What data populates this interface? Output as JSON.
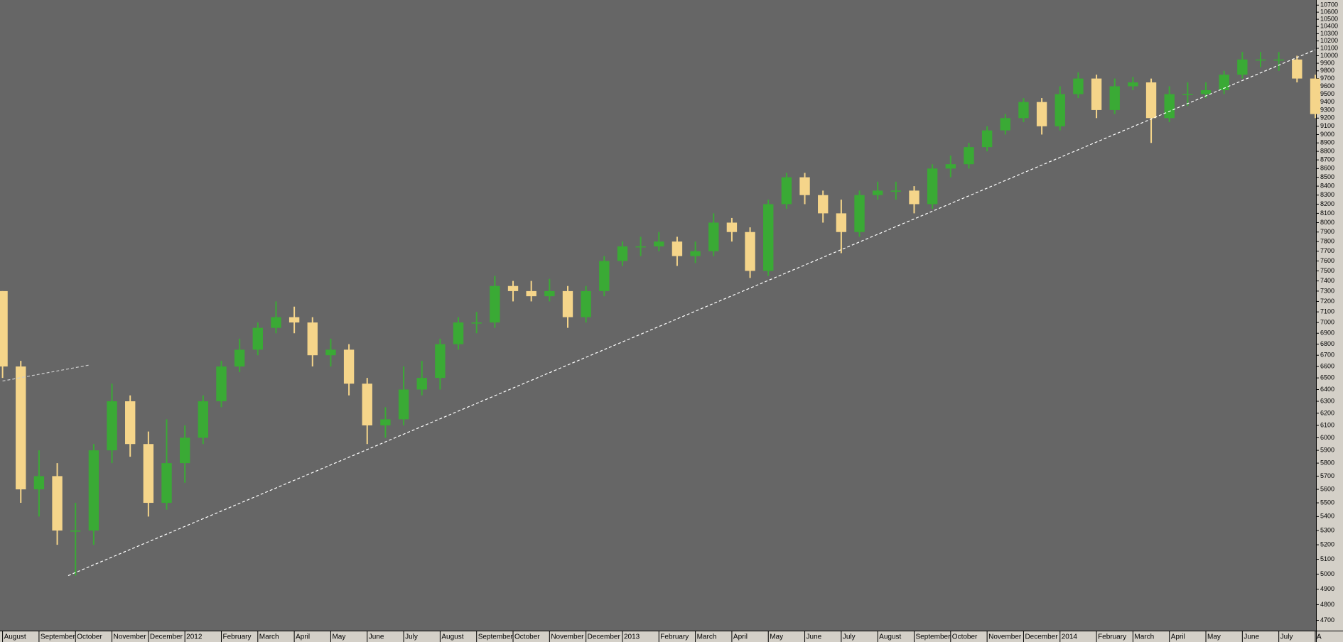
{
  "chart_data": {
    "type": "candlestick",
    "log_scale": true,
    "background": "#666666",
    "up_color": "#3aaa35",
    "down_color": "#f5d58a",
    "x": [
      0,
      0.5,
      1,
      1.5,
      2,
      2.5,
      3,
      3.5,
      4,
      4.5,
      5,
      5.5,
      6,
      6.5,
      7,
      7.5,
      8,
      8.5,
      9,
      9.5,
      10,
      10.5,
      11,
      11.5,
      12,
      12.5,
      13,
      13.5,
      14,
      14.5,
      15,
      15.5,
      16,
      16.5,
      17,
      17.5,
      18,
      18.5,
      19,
      19.5,
      20,
      20.5,
      21,
      21.5,
      22,
      22.5,
      23,
      23.5,
      24,
      24.5,
      25,
      25.5,
      26,
      26.5,
      27,
      27.5,
      28,
      28.5,
      29,
      29.5,
      30,
      30.5,
      31,
      31.5,
      32,
      32.5,
      33,
      33.5,
      34,
      34.5,
      35,
      35.5,
      36
    ],
    "open": [
      7300,
      6600,
      5600,
      5700,
      5300,
      5300,
      5900,
      6300,
      5950,
      5500,
      5800,
      6000,
      6300,
      6600,
      6750,
      6950,
      7050,
      7000,
      6700,
      6750,
      6450,
      6100,
      6150,
      6400,
      6500,
      6800,
      7000,
      7000,
      7350,
      7300,
      7250,
      7300,
      7050,
      7300,
      7600,
      7750,
      7750,
      7800,
      7650,
      7700,
      8000,
      7900,
      7500,
      8200,
      8500,
      8300,
      8100,
      7900,
      8300,
      8350,
      8350,
      8200,
      8600,
      8650,
      8850,
      9050,
      9200,
      9400,
      9100,
      9500,
      9700,
      9300,
      9600,
      9650,
      9200,
      9500,
      9500,
      9550,
      9750,
      9950,
      9950,
      9950,
      9700
    ],
    "high": [
      7300,
      6650,
      5900,
      5800,
      5500,
      5950,
      6450,
      6350,
      6050,
      6150,
      6100,
      6350,
      6650,
      6850,
      7000,
      7200,
      7150,
      7050,
      6850,
      6800,
      6500,
      6250,
      6600,
      6650,
      6850,
      7050,
      7100,
      7450,
      7400,
      7400,
      7420,
      7350,
      7350,
      7650,
      7800,
      7850,
      7900,
      7850,
      7800,
      8100,
      8050,
      7950,
      8250,
      8550,
      8550,
      8350,
      8250,
      8350,
      8450,
      8450,
      8400,
      8650,
      8750,
      8900,
      9100,
      9250,
      9450,
      9450,
      9600,
      9780,
      9750,
      9700,
      9720,
      9700,
      9600,
      9650,
      9650,
      9800,
      10050,
      10050,
      10050,
      10000,
      9750
    ],
    "low": [
      6500,
      5500,
      5400,
      5200,
      4990,
      5200,
      5800,
      5850,
      5400,
      5450,
      5650,
      5950,
      6250,
      6550,
      6700,
      6900,
      6900,
      6600,
      6600,
      6350,
      5950,
      6000,
      6100,
      6350,
      6400,
      6750,
      6900,
      6950,
      7200,
      7200,
      7200,
      6950,
      7000,
      7250,
      7550,
      7650,
      7700,
      7550,
      7580,
      7650,
      7800,
      7430,
      7450,
      8150,
      8200,
      8000,
      7680,
      7850,
      8250,
      8250,
      8100,
      8150,
      8500,
      8600,
      8800,
      9000,
      9150,
      9000,
      9050,
      9450,
      9200,
      9250,
      9550,
      8900,
      9150,
      9350,
      9450,
      9500,
      9700,
      9850,
      9800,
      9650,
      9200
    ],
    "close": [
      6600,
      5600,
      5700,
      5300,
      5300,
      5900,
      6300,
      5950,
      5500,
      5800,
      6000,
      6300,
      6600,
      6750,
      6950,
      7050,
      7000,
      6700,
      6750,
      6450,
      6100,
      6150,
      6400,
      6500,
      6800,
      7000,
      7000,
      7350,
      7300,
      7250,
      7300,
      7050,
      7300,
      7600,
      7750,
      7750,
      7800,
      7650,
      7700,
      8000,
      7900,
      7500,
      8200,
      8500,
      8300,
      8100,
      7900,
      8300,
      8350,
      8350,
      8200,
      8600,
      8650,
      8850,
      9050,
      9200,
      9400,
      9100,
      9500,
      9700,
      9300,
      9600,
      9650,
      9200,
      9500,
      9500,
      9550,
      9750,
      9950,
      9950,
      9950,
      9700,
      9250
    ],
    "xlim": [
      -0.07,
      36.02
    ],
    "ylim": [
      4636,
      10774
    ],
    "yticks": [
      4700,
      4800,
      4900,
      5000,
      5100,
      5200,
      5300,
      5400,
      5500,
      5600,
      5700,
      5800,
      5900,
      6000,
      6100,
      6200,
      6300,
      6400,
      6500,
      6600,
      6700,
      6800,
      6900,
      7000,
      7100,
      7200,
      7300,
      7400,
      7500,
      7600,
      7700,
      7800,
      7900,
      8000,
      8100,
      8200,
      8300,
      8400,
      8500,
      8600,
      8700,
      8800,
      8900,
      9000,
      9100,
      9200,
      9300,
      9400,
      9500,
      9600,
      9700,
      9800,
      9900,
      10000,
      10100,
      10200,
      10300,
      10400,
      10500,
      10600,
      10700
    ],
    "xticks": [
      {
        "value": 0,
        "label": "August"
      },
      {
        "value": 1,
        "label": "September"
      },
      {
        "value": 2,
        "label": "October"
      },
      {
        "value": 3,
        "label": "November"
      },
      {
        "value": 4,
        "label": "December"
      },
      {
        "value": 5,
        "label": "2012"
      },
      {
        "value": 6,
        "label": "February"
      },
      {
        "value": 7,
        "label": "March"
      },
      {
        "value": 8,
        "label": "April"
      },
      {
        "value": 9,
        "label": "May"
      },
      {
        "value": 10,
        "label": "June"
      },
      {
        "value": 11,
        "label": "July"
      },
      {
        "value": 12,
        "label": "August"
      },
      {
        "value": 13,
        "label": "September"
      },
      {
        "value": 14,
        "label": "October"
      },
      {
        "value": 15,
        "label": "November"
      },
      {
        "value": 16,
        "label": "December"
      },
      {
        "value": 17,
        "label": "2013"
      },
      {
        "value": 18,
        "label": "February"
      },
      {
        "value": 19,
        "label": "March"
      },
      {
        "value": 20,
        "label": "April"
      },
      {
        "value": 21,
        "label": "May"
      },
      {
        "value": 22,
        "label": "June"
      },
      {
        "value": 23,
        "label": "July"
      },
      {
        "value": 24,
        "label": "August"
      },
      {
        "value": 25,
        "label": "September"
      },
      {
        "value": 26,
        "label": "October"
      },
      {
        "value": 27,
        "label": "November"
      },
      {
        "value": 28,
        "label": "December"
      },
      {
        "value": 29,
        "label": "2014"
      },
      {
        "value": 30,
        "label": "February"
      },
      {
        "value": 31,
        "label": "March"
      },
      {
        "value": 32,
        "label": "April"
      },
      {
        "value": 33,
        "label": "May"
      },
      {
        "value": 34,
        "label": "June"
      },
      {
        "value": 35,
        "label": "July"
      },
      {
        "value": 36,
        "label": "A"
      }
    ],
    "trendlines": [
      {
        "x": [
          1.8,
          36
        ],
        "y": [
          4990,
          10080
        ],
        "color": "#ffffff",
        "dashed": true
      },
      {
        "x": [
          0,
          2.4
        ],
        "y": [
          6473,
          6614
        ],
        "color": "#cccccc",
        "dashed": true
      }
    ]
  }
}
